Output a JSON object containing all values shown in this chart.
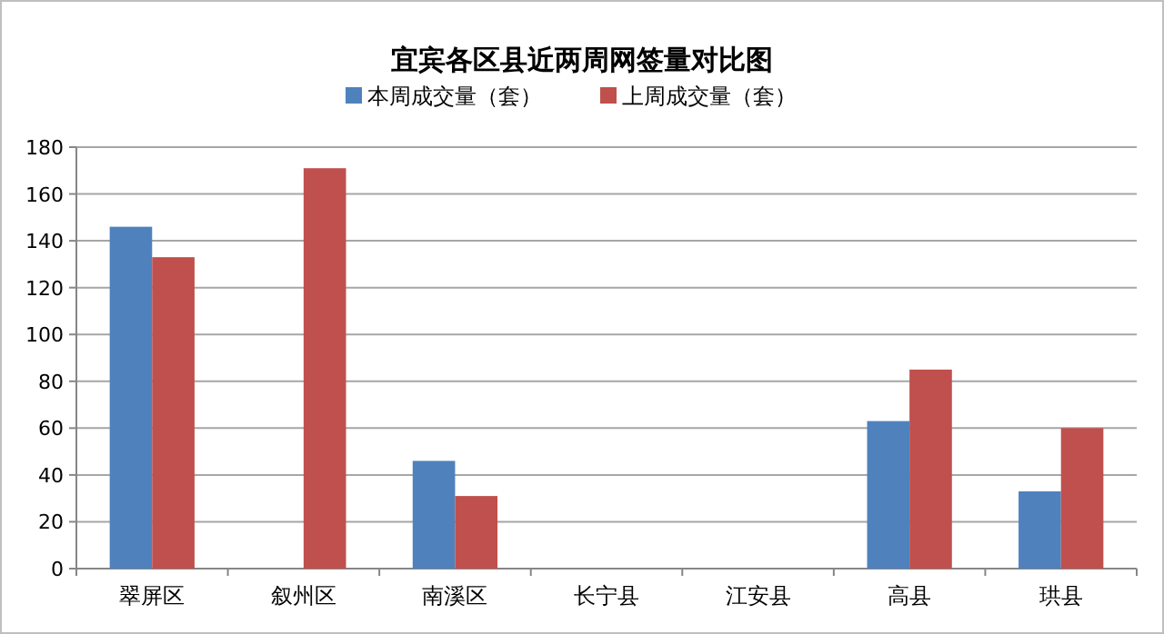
{
  "chart_data": {
    "type": "bar",
    "title": "宜宾各区县近两周网签量对比图",
    "categories": [
      "翠屏区",
      "叙州区",
      "南溪区",
      "长宁县",
      "江安县",
      "高县",
      "珙县"
    ],
    "series": [
      {
        "name": "本周成交量（套）",
        "color": "#4f81bd",
        "values": [
          146,
          null,
          46,
          null,
          null,
          63,
          33
        ]
      },
      {
        "name": "上周成交量（套）",
        "color": "#c0504d",
        "values": [
          133,
          171,
          31,
          null,
          null,
          85,
          60
        ]
      }
    ],
    "ylim": [
      0,
      180
    ],
    "yticks": [
      0,
      20,
      40,
      60,
      80,
      100,
      120,
      140,
      160,
      180
    ],
    "grid": "y",
    "legend": "top"
  }
}
